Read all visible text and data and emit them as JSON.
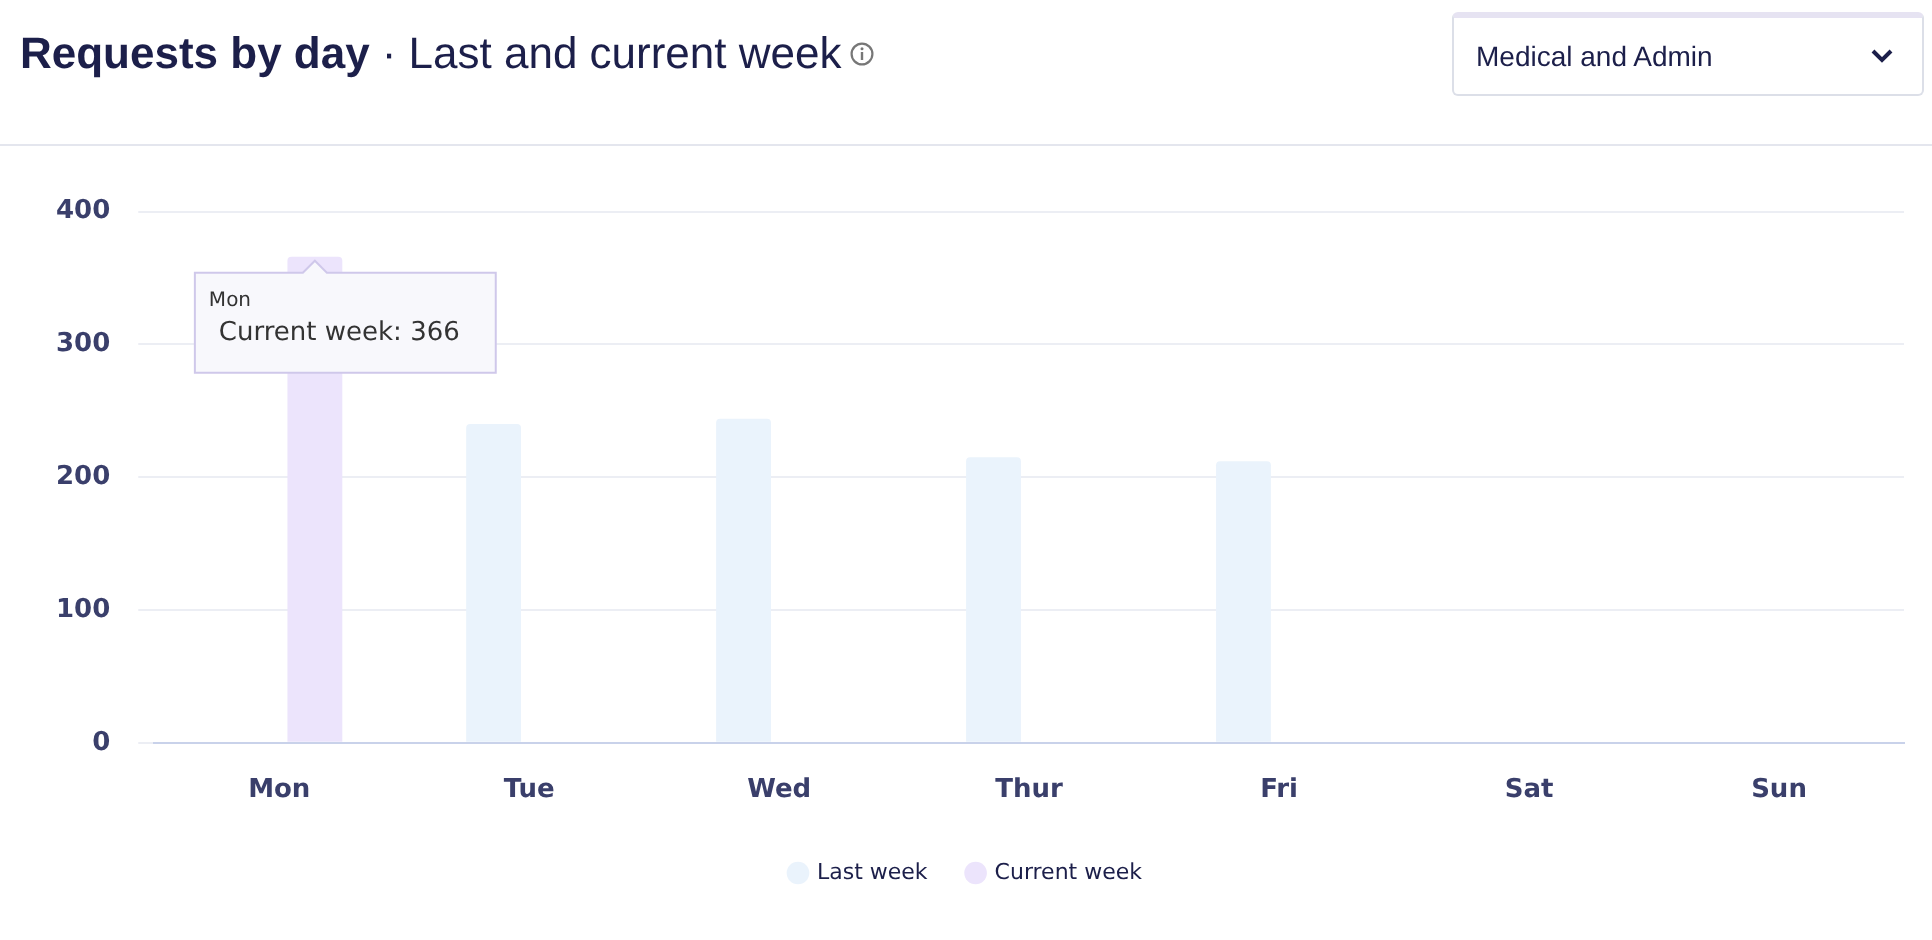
{
  "chart_data": {
    "type": "bar",
    "title": "Requests by day",
    "subtitle": "· Last and current week",
    "categories": [
      "Mon",
      "Tue",
      "Wed",
      "Thur",
      "Fri",
      "Sat",
      "Sun"
    ],
    "series": [
      {
        "name": "Last week",
        "color": "#eaf3fc",
        "values": [
          null,
          240,
          244,
          215,
          212,
          null,
          null
        ]
      },
      {
        "name": "Current week",
        "color": "#ece4fc",
        "values": [
          366,
          null,
          null,
          null,
          null,
          null,
          null
        ]
      }
    ],
    "ylim": [
      0,
      400
    ],
    "yticks": [
      0,
      100,
      200,
      300,
      400
    ],
    "grid": "y",
    "legend": "bottom",
    "annotations": [
      {
        "text": "Mon",
        "x": "Mon",
        "y": 366
      },
      {
        "text": "Current week: 366",
        "x": "Mon",
        "y": 366
      },
      "Medical and Admin"
    ]
  }
}
